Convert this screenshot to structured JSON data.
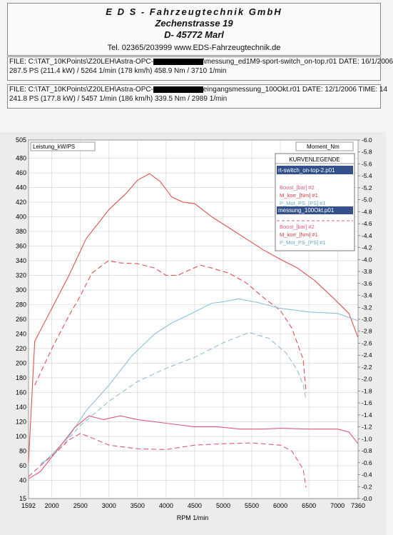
{
  "header": {
    "company": "E D S - Fahrzeugtechnik GmbH",
    "street": "Zechenstrasse 19",
    "city": "D- 45772 Marl",
    "contact": "Tel. 02365/203999   www.EDS-Fahrzeugtechnik.de"
  },
  "files": [
    {
      "path_prefix": "FILE: C:\\TAT_10KPoints\\Z20LEH\\Astra-OPC-",
      "path_suffix": "\\messung_ed1M9-sport-switch_on-top.r01",
      "date": "DATE: 16/1/2006",
      "summary": "287.5 PS  (211.4 kW) / 5264 1/min (178 km/h)    458.9 Nm / 3710 1/min"
    },
    {
      "path_prefix": "FILE: C:\\TAT_10KPoints\\Z20LEH\\Astra-OPC-",
      "path_suffix": "eingangsmessung_100Okt.r01",
      "date": "DATE: 12/1/2006  TIME: 14",
      "summary": "241.8 PS  (177.8 kW) / 5457 1/min (186 km/h)    339.5 Nm / 2989 1/min"
    }
  ],
  "legend": {
    "title": "KURVENLEGENDE",
    "group1_file": "rt-switch_on-top-2.p01",
    "group1": [
      "Boost_[bar] #2",
      "M_korr_[Nm] #1",
      "P_Mot_PS_[PS] #1"
    ],
    "group2_file": "messung_100Okt.p01",
    "group2": [
      "Boost_[bar] #2",
      "M_korr_[Nm] #1",
      "P_Mot_PS_[PS] #1"
    ]
  },
  "colors": {
    "torque": "#e05050",
    "power": "#8ec0dc",
    "boost": "#dd5a78",
    "legend_header": "#34508a"
  },
  "chart_data": {
    "type": "line",
    "left_axis_label": "Leistung_kW/PS",
    "right_axis_label": "Moment_Nm",
    "xlabel": "RPM  1/min",
    "xlim": [
      1592,
      7360
    ],
    "ylim_left": [
      15,
      505
    ],
    "ylim_right": [
      0.0,
      -6.0
    ],
    "x_ticks": [
      "1592",
      "2000",
      "2500",
      "3000",
      "3500",
      "4000",
      "4500",
      "5000",
      "5500",
      "6000",
      "6500",
      "7000",
      "7360"
    ],
    "y_left_ticks": [
      "505",
      "480",
      "460",
      "440",
      "420",
      "400",
      "380",
      "360",
      "340",
      "320",
      "300",
      "280",
      "260",
      "240",
      "220",
      "200",
      "180",
      "160",
      "140",
      "120",
      "100",
      "80",
      "60",
      "40",
      "15"
    ],
    "y_right_ticks": [
      "-6.0",
      "-5.8",
      "-5.6",
      "-5.4",
      "-5.2",
      "-5.0",
      "-4.8",
      "-4.6",
      "-4.4",
      "-4.2",
      "-4.0",
      "-3.8",
      "-3.6",
      "-3.4",
      "-3.2",
      "-3.0",
      "-2.8",
      "-2.6",
      "-2.4",
      "-2.2",
      "-2.0",
      "-1.8",
      "-1.6",
      "-1.4",
      "-1.2",
      "-1.0",
      "-0.8",
      "-0.6",
      "-0.4",
      "-0.2",
      "-0.0"
    ],
    "series": [
      {
        "name": "M_korr_[Nm] #1",
        "file": 1,
        "color": "#e05050",
        "dash": false,
        "x": [
          1592,
          1700,
          2000,
          2300,
          2600,
          3000,
          3300,
          3500,
          3710,
          3900,
          4100,
          4300,
          4500,
          4800,
          5100,
          5400,
          5700,
          6000,
          6300,
          6600,
          6900,
          7200,
          7360
        ],
        "y": [
          65,
          230,
          275,
          320,
          370,
          410,
          432,
          450,
          459,
          448,
          427,
          420,
          418,
          400,
          385,
          370,
          355,
          342,
          330,
          313,
          291,
          268,
          235
        ]
      },
      {
        "name": "M_korr_[Nm] #1",
        "file": 2,
        "color": "#e05050",
        "dash": true,
        "x": [
          1700,
          2000,
          2300,
          2500,
          2700,
          2989,
          3200,
          3500,
          3800,
          4000,
          4200,
          4400,
          4600,
          4800,
          5100,
          5400,
          5700,
          6000,
          6200,
          6400,
          6450
        ],
        "y": [
          170,
          220,
          265,
          292,
          323,
          340,
          337,
          336,
          330,
          320,
          320,
          327,
          334,
          330,
          323,
          310,
          290,
          272,
          248,
          205,
          160
        ]
      },
      {
        "name": "P_Mot_PS_[PS] #1",
        "file": 1,
        "color": "#8ec0dc",
        "dash": false,
        "x": [
          1800,
          2000,
          2300,
          2600,
          3000,
          3400,
          3800,
          4100,
          4500,
          4800,
          5000,
          5264,
          5600,
          6000,
          6500,
          7000,
          7360
        ],
        "y": [
          60,
          75,
          100,
          135,
          170,
          210,
          240,
          255,
          270,
          282,
          284,
          288,
          283,
          275,
          270,
          268,
          258
        ]
      },
      {
        "name": "P_Mot_PS_[PS] #1",
        "file": 2,
        "color": "#8ec0dc",
        "dash": true,
        "x": [
          1800,
          2100,
          2500,
          3000,
          3500,
          4000,
          4500,
          5000,
          5457,
          5800,
          6100,
          6300,
          6400,
          6450
        ],
        "y": [
          62,
          80,
          115,
          148,
          175,
          193,
          208,
          228,
          242,
          234,
          214,
          190,
          170,
          150
        ]
      },
      {
        "name": "Boost_[bar] #2",
        "file": 1,
        "color": "#dd5a78",
        "dash": false,
        "x": [
          1592,
          1800,
          2100,
          2400,
          2650,
          2900,
          3200,
          3500,
          4000,
          4500,
          4900,
          5300,
          5700,
          6000,
          6500,
          7000,
          7200,
          7360
        ],
        "y": [
          42,
          52,
          82,
          112,
          128,
          123,
          128,
          123,
          118,
          113,
          113,
          110,
          110,
          111,
          110,
          110,
          106,
          90
        ]
      },
      {
        "name": "Boost_[bar] #2",
        "file": 2,
        "color": "#dd5a78",
        "dash": true,
        "x": [
          1592,
          1800,
          2100,
          2300,
          2500,
          2700,
          3000,
          3500,
          4000,
          4500,
          5000,
          5500,
          6000,
          6200,
          6400,
          6450
        ],
        "y": [
          45,
          60,
          80,
          95,
          104,
          98,
          88,
          83,
          82,
          88,
          90,
          91,
          88,
          80,
          55,
          30
        ]
      }
    ]
  }
}
